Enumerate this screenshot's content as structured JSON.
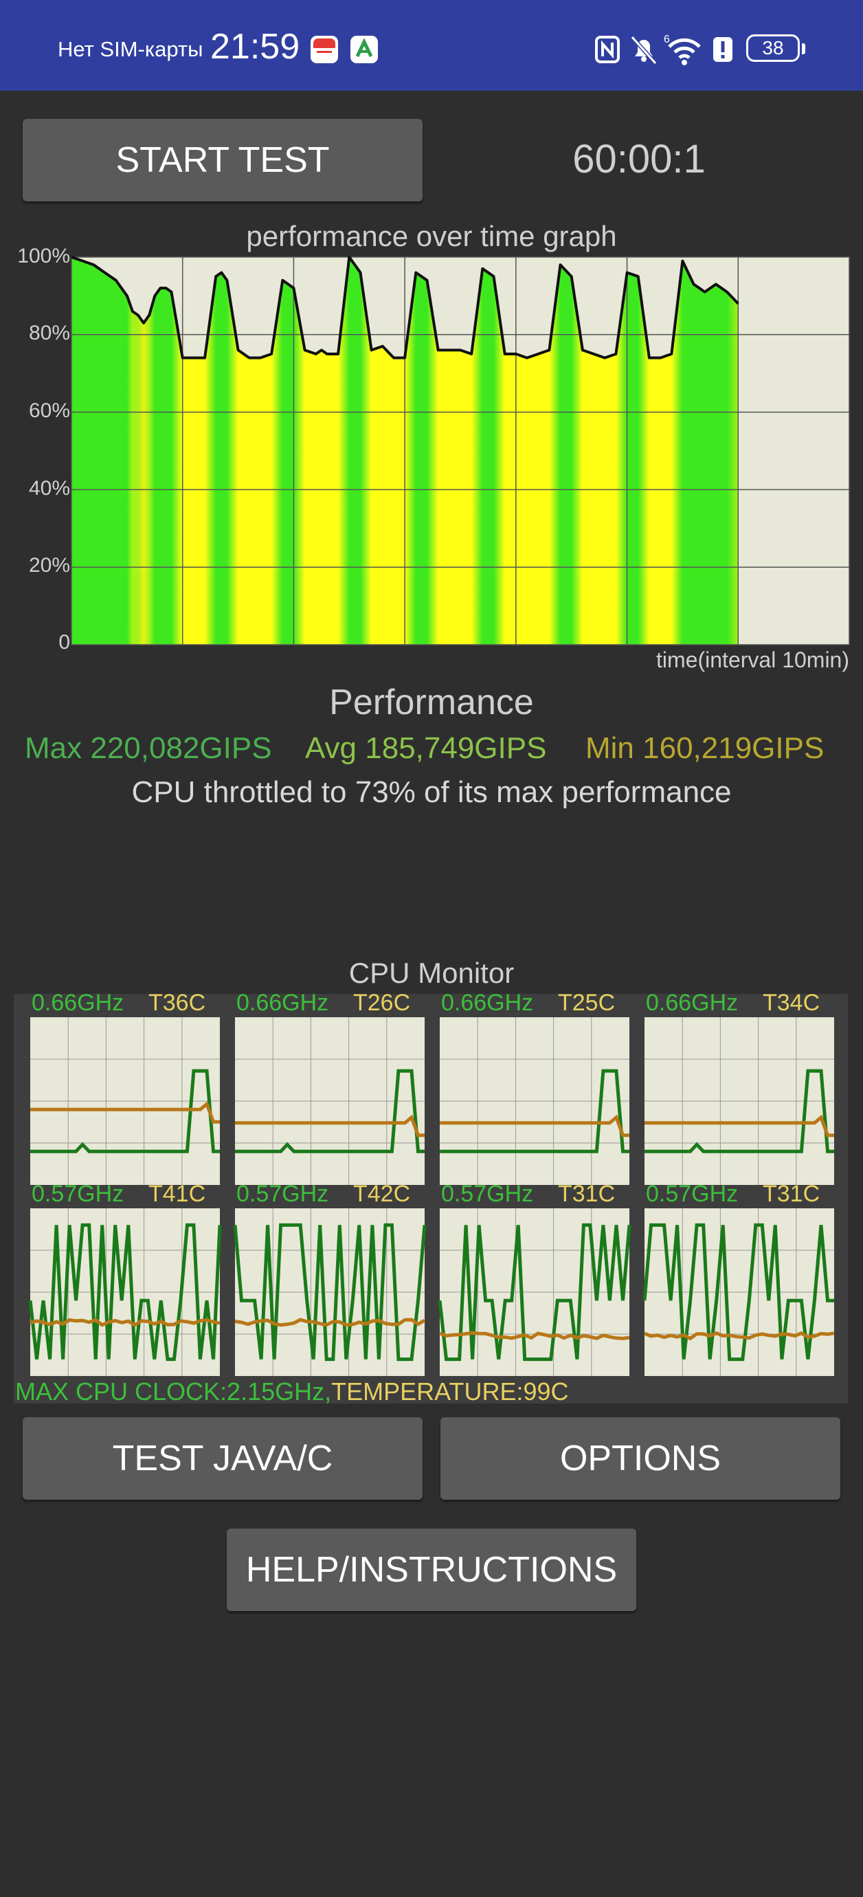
{
  "status_bar": {
    "carrier": "Нет SIM-карты",
    "time": "21:59",
    "battery": "38",
    "network_superscript": "6",
    "icons": [
      "calendar-app-icon",
      "green-app-icon",
      "nfc-icon",
      "mute-icon",
      "wifi-icon",
      "alert-icon",
      "battery-icon"
    ]
  },
  "controls": {
    "start_label": "START TEST",
    "timer": "60:00:1",
    "test_java_label": "TEST JAVA/C",
    "options_label": "OPTIONS",
    "help_label": "HELP/INSTRUCTIONS"
  },
  "graph": {
    "title": "performance over time graph",
    "y_ticks": [
      "100%",
      "80%",
      "60%",
      "40%",
      "20%",
      "0"
    ],
    "x_label": "time(interval 10min)"
  },
  "performance": {
    "title": "Performance",
    "max": "Max 220,082GIPS",
    "avg": "Avg 185,749GIPS",
    "min": "Min 160,219GIPS",
    "throttle": "CPU throttled to 73% of its max performance"
  },
  "cpu_monitor": {
    "title": "CPU Monitor",
    "cores": [
      {
        "ghz": "0.66GHz",
        "temp": "T36C"
      },
      {
        "ghz": "0.66GHz",
        "temp": "T26C"
      },
      {
        "ghz": "0.66GHz",
        "temp": "T25C"
      },
      {
        "ghz": "0.66GHz",
        "temp": "T34C"
      },
      {
        "ghz": "0.57GHz",
        "temp": "T41C"
      },
      {
        "ghz": "0.57GHz",
        "temp": "T42C"
      },
      {
        "ghz": "0.57GHz",
        "temp": "T31C"
      },
      {
        "ghz": "0.57GHz",
        "temp": "T31C"
      }
    ],
    "max_clock": "MAX CPU CLOCK:2.15GHz,",
    "max_temp": "TEMPERATURE:99C"
  },
  "colors": {
    "status_bar": "#303f9f",
    "background": "#2e2e2e",
    "button": "#5a5a5a",
    "max_green": "#4caf50",
    "avg_green": "#8bc34a",
    "min_olive": "#b8a830",
    "freq_line": "#1a7a1a",
    "temp_line": "#b87818"
  },
  "chart_data": {
    "type": "area",
    "title": "performance over time graph",
    "xlabel": "time(interval 10min)",
    "ylabel": "",
    "ylim": [
      0,
      100
    ],
    "y_unit": "%",
    "x_range_minutes": [
      0,
      70
    ],
    "series": [
      {
        "x": [
          0,
          1,
          2,
          3,
          4,
          5,
          5.5,
          6,
          6.5,
          7,
          7.5,
          8,
          8.5,
          9,
          10,
          11,
          12,
          13,
          13.5,
          14,
          15,
          16,
          17,
          18,
          19,
          20,
          21,
          22,
          22.5,
          23,
          24,
          25,
          26,
          27,
          28,
          29,
          30,
          31,
          32,
          33,
          34,
          35,
          36,
          37,
          38,
          39,
          40,
          41,
          42,
          43,
          44,
          45,
          46,
          47,
          48,
          49,
          50,
          51,
          52,
          53,
          54,
          55,
          56,
          57,
          58,
          59,
          60
        ],
        "y": [
          100,
          99,
          98,
          96,
          94,
          90,
          86,
          85,
          83,
          85,
          90,
          92,
          92,
          91,
          74,
          74,
          74,
          95,
          96,
          94,
          76,
          74,
          74,
          75,
          94,
          92,
          76,
          75,
          76,
          75,
          75,
          100,
          96,
          76,
          77,
          74,
          74,
          96,
          94,
          76,
          76,
          76,
          75,
          97,
          95,
          75,
          75,
          74,
          75,
          76,
          98,
          95,
          76,
          75,
          74,
          75,
          96,
          95,
          74,
          74,
          75,
          99,
          93,
          91,
          93,
          91,
          88
        ]
      }
    ],
    "min_percent": 73
  }
}
